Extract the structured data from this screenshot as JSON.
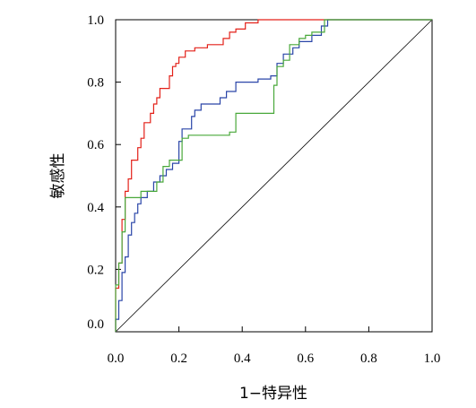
{
  "chart_data": {
    "type": "line",
    "title": "",
    "xlabel": "1−特异性",
    "ylabel": "敏感性",
    "xlim": [
      0,
      1
    ],
    "ylim": [
      0,
      1
    ],
    "x_ticks": [
      "0.0",
      "0.2",
      "0.4",
      "0.6",
      "0.8",
      "1.0"
    ],
    "y_ticks": [
      "0.0",
      "0.2",
      "0.4",
      "0.6",
      "0.8",
      "1.0"
    ],
    "grid": false,
    "legend": "none",
    "reference_line": {
      "from": [
        0,
        0
      ],
      "to": [
        1,
        1
      ],
      "color": "#000000"
    },
    "series": [
      {
        "color": "#e32119",
        "points": [
          [
            0,
            0
          ],
          [
            0,
            0.14
          ],
          [
            0.01,
            0.14
          ],
          [
            0.01,
            0.22
          ],
          [
            0.02,
            0.22
          ],
          [
            0.02,
            0.36
          ],
          [
            0.03,
            0.36
          ],
          [
            0.03,
            0.45
          ],
          [
            0.04,
            0.45
          ],
          [
            0.04,
            0.49
          ],
          [
            0.05,
            0.49
          ],
          [
            0.05,
            0.55
          ],
          [
            0.07,
            0.55
          ],
          [
            0.07,
            0.59
          ],
          [
            0.08,
            0.59
          ],
          [
            0.08,
            0.62
          ],
          [
            0.09,
            0.62
          ],
          [
            0.09,
            0.67
          ],
          [
            0.11,
            0.67
          ],
          [
            0.11,
            0.7
          ],
          [
            0.12,
            0.7
          ],
          [
            0.12,
            0.73
          ],
          [
            0.13,
            0.73
          ],
          [
            0.13,
            0.75
          ],
          [
            0.14,
            0.75
          ],
          [
            0.14,
            0.78
          ],
          [
            0.17,
            0.78
          ],
          [
            0.17,
            0.82
          ],
          [
            0.18,
            0.82
          ],
          [
            0.18,
            0.85
          ],
          [
            0.19,
            0.85
          ],
          [
            0.19,
            0.86
          ],
          [
            0.2,
            0.86
          ],
          [
            0.2,
            0.88
          ],
          [
            0.22,
            0.88
          ],
          [
            0.22,
            0.9
          ],
          [
            0.25,
            0.9
          ],
          [
            0.25,
            0.91
          ],
          [
            0.29,
            0.91
          ],
          [
            0.29,
            0.92
          ],
          [
            0.34,
            0.92
          ],
          [
            0.34,
            0.94
          ],
          [
            0.36,
            0.94
          ],
          [
            0.36,
            0.96
          ],
          [
            0.38,
            0.96
          ],
          [
            0.38,
            0.97
          ],
          [
            0.41,
            0.97
          ],
          [
            0.41,
            0.99
          ],
          [
            0.45,
            0.99
          ],
          [
            0.45,
            1.0
          ],
          [
            1.0,
            1.0
          ]
        ]
      },
      {
        "color": "#2a45a8",
        "points": [
          [
            0,
            0
          ],
          [
            0,
            0.04
          ],
          [
            0.01,
            0.04
          ],
          [
            0.01,
            0.1
          ],
          [
            0.02,
            0.1
          ],
          [
            0.02,
            0.19
          ],
          [
            0.03,
            0.19
          ],
          [
            0.03,
            0.24
          ],
          [
            0.04,
            0.24
          ],
          [
            0.04,
            0.31
          ],
          [
            0.05,
            0.31
          ],
          [
            0.05,
            0.35
          ],
          [
            0.06,
            0.35
          ],
          [
            0.06,
            0.38
          ],
          [
            0.07,
            0.38
          ],
          [
            0.07,
            0.41
          ],
          [
            0.08,
            0.41
          ],
          [
            0.08,
            0.43
          ],
          [
            0.1,
            0.43
          ],
          [
            0.1,
            0.45
          ],
          [
            0.12,
            0.45
          ],
          [
            0.12,
            0.48
          ],
          [
            0.14,
            0.48
          ],
          [
            0.14,
            0.5
          ],
          [
            0.16,
            0.5
          ],
          [
            0.16,
            0.52
          ],
          [
            0.18,
            0.52
          ],
          [
            0.18,
            0.54
          ],
          [
            0.2,
            0.54
          ],
          [
            0.2,
            0.61
          ],
          [
            0.21,
            0.61
          ],
          [
            0.21,
            0.65
          ],
          [
            0.24,
            0.65
          ],
          [
            0.24,
            0.69
          ],
          [
            0.25,
            0.69
          ],
          [
            0.25,
            0.71
          ],
          [
            0.27,
            0.71
          ],
          [
            0.27,
            0.73
          ],
          [
            0.33,
            0.73
          ],
          [
            0.33,
            0.75
          ],
          [
            0.35,
            0.75
          ],
          [
            0.35,
            0.77
          ],
          [
            0.38,
            0.77
          ],
          [
            0.38,
            0.8
          ],
          [
            0.45,
            0.8
          ],
          [
            0.45,
            0.81
          ],
          [
            0.49,
            0.81
          ],
          [
            0.49,
            0.82
          ],
          [
            0.51,
            0.82
          ],
          [
            0.51,
            0.86
          ],
          [
            0.53,
            0.86
          ],
          [
            0.53,
            0.89
          ],
          [
            0.56,
            0.89
          ],
          [
            0.56,
            0.91
          ],
          [
            0.58,
            0.91
          ],
          [
            0.58,
            0.93
          ],
          [
            0.62,
            0.93
          ],
          [
            0.62,
            0.95
          ],
          [
            0.65,
            0.95
          ],
          [
            0.65,
            0.98
          ],
          [
            0.67,
            0.98
          ],
          [
            0.67,
            1.0
          ],
          [
            1.0,
            1.0
          ]
        ]
      },
      {
        "color": "#49a83a",
        "points": [
          [
            0,
            0
          ],
          [
            0,
            0.15
          ],
          [
            0.01,
            0.15
          ],
          [
            0.01,
            0.22
          ],
          [
            0.02,
            0.22
          ],
          [
            0.02,
            0.32
          ],
          [
            0.03,
            0.32
          ],
          [
            0.03,
            0.43
          ],
          [
            0.08,
            0.43
          ],
          [
            0.08,
            0.45
          ],
          [
            0.13,
            0.45
          ],
          [
            0.13,
            0.48
          ],
          [
            0.15,
            0.48
          ],
          [
            0.15,
            0.53
          ],
          [
            0.17,
            0.53
          ],
          [
            0.17,
            0.55
          ],
          [
            0.21,
            0.55
          ],
          [
            0.21,
            0.62
          ],
          [
            0.23,
            0.62
          ],
          [
            0.23,
            0.63
          ],
          [
            0.36,
            0.63
          ],
          [
            0.36,
            0.64
          ],
          [
            0.38,
            0.64
          ],
          [
            0.38,
            0.7
          ],
          [
            0.5,
            0.7
          ],
          [
            0.5,
            0.79
          ],
          [
            0.51,
            0.79
          ],
          [
            0.51,
            0.85
          ],
          [
            0.53,
            0.85
          ],
          [
            0.53,
            0.87
          ],
          [
            0.55,
            0.87
          ],
          [
            0.55,
            0.92
          ],
          [
            0.58,
            0.92
          ],
          [
            0.58,
            0.94
          ],
          [
            0.6,
            0.94
          ],
          [
            0.6,
            0.95
          ],
          [
            0.62,
            0.95
          ],
          [
            0.62,
            0.96
          ],
          [
            0.66,
            0.96
          ],
          [
            0.66,
            1.0
          ],
          [
            1.0,
            1.0
          ]
        ]
      }
    ]
  }
}
